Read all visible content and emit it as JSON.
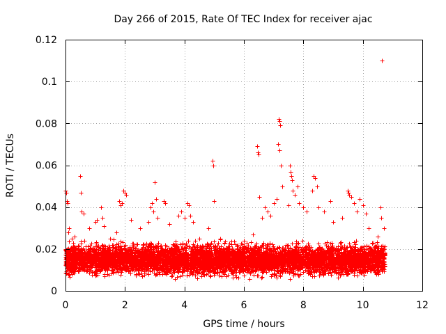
{
  "chart_data": {
    "type": "scatter",
    "title": "Day 266 of 2015, Rate Of TEC Index for receiver ajac",
    "xlabel": "GPS time / hours",
    "ylabel": "ROTI / TECUs",
    "xlim": [
      0,
      12
    ],
    "ylim": [
      0,
      0.12
    ],
    "x_ticks": [
      0,
      2,
      4,
      6,
      8,
      10,
      12
    ],
    "x_tick_labels": [
      "0",
      "2",
      "4",
      "6",
      "8",
      "10",
      "12"
    ],
    "y_ticks": [
      0,
      0.02,
      0.04,
      0.06,
      0.08,
      0.1,
      0.12
    ],
    "y_tick_labels": [
      "0",
      "0.02",
      "0.04",
      "0.06",
      "0.08",
      "0.1",
      "0.12"
    ],
    "grid": true,
    "marker": "+",
    "color": "#ff0000",
    "series": [
      {
        "name": "ROTI",
        "points": [
          [
            0.0,
            0.048
          ],
          [
            0.02,
            0.047
          ],
          [
            0.05,
            0.043
          ],
          [
            0.07,
            0.042
          ],
          [
            0.1,
            0.028
          ],
          [
            0.12,
            0.03
          ],
          [
            0.2,
            0.025
          ],
          [
            0.3,
            0.026
          ],
          [
            0.5,
            0.055
          ],
          [
            0.52,
            0.047
          ],
          [
            0.55,
            0.038
          ],
          [
            0.6,
            0.037
          ],
          [
            0.8,
            0.03
          ],
          [
            1.0,
            0.033
          ],
          [
            1.05,
            0.034
          ],
          [
            1.2,
            0.04
          ],
          [
            1.25,
            0.035
          ],
          [
            1.3,
            0.031
          ],
          [
            1.5,
            0.025
          ],
          [
            1.7,
            0.028
          ],
          [
            1.8,
            0.043
          ],
          [
            1.85,
            0.041
          ],
          [
            1.9,
            0.042
          ],
          [
            1.95,
            0.048
          ],
          [
            2.0,
            0.047
          ],
          [
            2.05,
            0.046
          ],
          [
            2.2,
            0.034
          ],
          [
            2.5,
            0.03
          ],
          [
            2.8,
            0.033
          ],
          [
            2.85,
            0.04
          ],
          [
            2.9,
            0.042
          ],
          [
            2.95,
            0.038
          ],
          [
            3.0,
            0.052
          ],
          [
            3.05,
            0.044
          ],
          [
            3.1,
            0.035
          ],
          [
            3.3,
            0.043
          ],
          [
            3.35,
            0.042
          ],
          [
            3.5,
            0.032
          ],
          [
            3.8,
            0.036
          ],
          [
            3.9,
            0.038
          ],
          [
            4.0,
            0.035
          ],
          [
            4.1,
            0.042
          ],
          [
            4.15,
            0.041
          ],
          [
            4.2,
            0.036
          ],
          [
            4.3,
            0.033
          ],
          [
            4.5,
            0.025
          ],
          [
            4.8,
            0.03
          ],
          [
            4.95,
            0.062
          ],
          [
            4.97,
            0.06
          ],
          [
            5.0,
            0.043
          ],
          [
            5.2,
            0.025
          ],
          [
            5.5,
            0.02
          ],
          [
            5.8,
            0.022
          ],
          [
            6.0,
            0.024
          ],
          [
            6.3,
            0.027
          ],
          [
            6.45,
            0.069
          ],
          [
            6.48,
            0.066
          ],
          [
            6.5,
            0.065
          ],
          [
            6.52,
            0.045
          ],
          [
            6.6,
            0.035
          ],
          [
            6.7,
            0.04
          ],
          [
            6.8,
            0.038
          ],
          [
            6.9,
            0.036
          ],
          [
            7.0,
            0.042
          ],
          [
            7.1,
            0.044
          ],
          [
            7.18,
            0.082
          ],
          [
            7.2,
            0.081
          ],
          [
            7.22,
            0.079
          ],
          [
            7.15,
            0.07
          ],
          [
            7.2,
            0.067
          ],
          [
            7.25,
            0.06
          ],
          [
            7.3,
            0.05
          ],
          [
            7.5,
            0.041
          ],
          [
            7.55,
            0.06
          ],
          [
            7.57,
            0.057
          ],
          [
            7.6,
            0.055
          ],
          [
            7.62,
            0.053
          ],
          [
            7.65,
            0.048
          ],
          [
            7.7,
            0.046
          ],
          [
            7.8,
            0.05
          ],
          [
            7.85,
            0.042
          ],
          [
            8.0,
            0.04
          ],
          [
            8.1,
            0.038
          ],
          [
            8.3,
            0.048
          ],
          [
            8.35,
            0.055
          ],
          [
            8.4,
            0.054
          ],
          [
            8.45,
            0.05
          ],
          [
            8.5,
            0.04
          ],
          [
            8.7,
            0.038
          ],
          [
            8.9,
            0.043
          ],
          [
            9.0,
            0.033
          ],
          [
            9.3,
            0.035
          ],
          [
            9.5,
            0.048
          ],
          [
            9.52,
            0.047
          ],
          [
            9.55,
            0.046
          ],
          [
            9.6,
            0.045
          ],
          [
            9.7,
            0.042
          ],
          [
            9.8,
            0.038
          ],
          [
            9.9,
            0.044
          ],
          [
            10.0,
            0.041
          ],
          [
            10.1,
            0.037
          ],
          [
            10.2,
            0.03
          ],
          [
            10.5,
            0.026
          ],
          [
            10.6,
            0.04
          ],
          [
            10.62,
            0.035
          ],
          [
            10.65,
            0.11
          ],
          [
            10.7,
            0.03
          ]
        ],
        "dense_band": {
          "description": "dense cluster of points",
          "x_range": [
            0.0,
            10.75
          ],
          "y_range": [
            0.005,
            0.025
          ],
          "count_estimate": 6000
        }
      }
    ]
  }
}
